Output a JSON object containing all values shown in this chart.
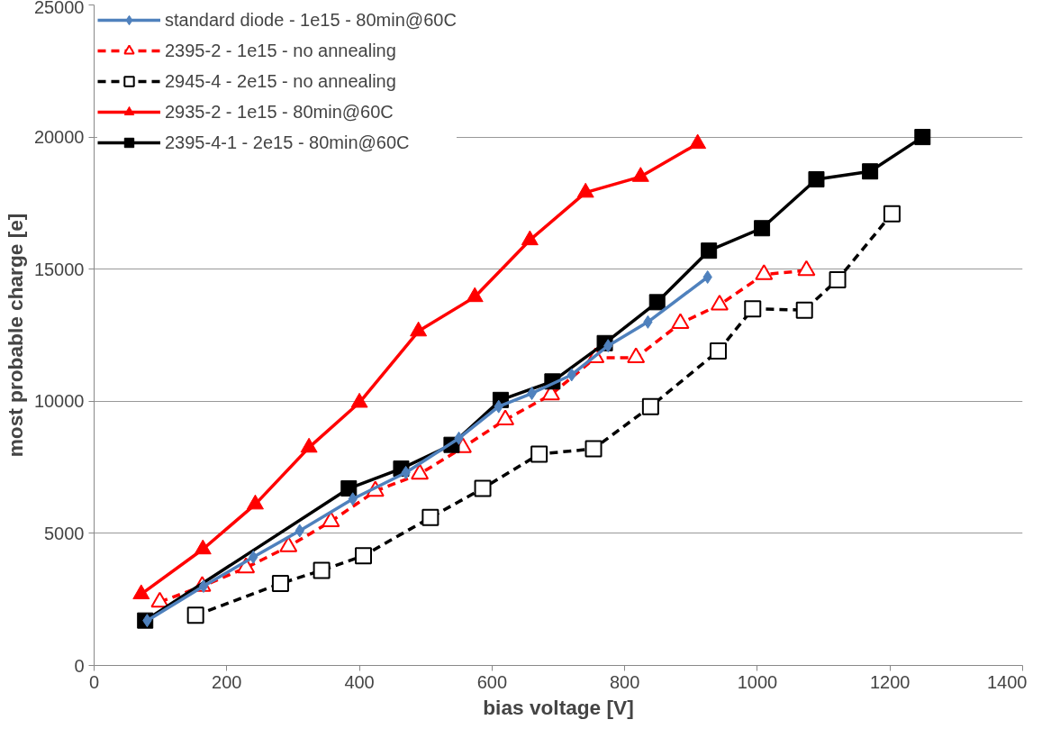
{
  "chart_data": {
    "type": "line",
    "xlabel": "bias voltage [V]",
    "ylabel": "most probable charge [e]",
    "xlim": [
      0,
      1400
    ],
    "xticks": [
      0,
      200,
      400,
      600,
      800,
      1000,
      1200,
      1400
    ],
    "ylim": [
      0,
      25000
    ],
    "yticks": [
      0,
      5000,
      10000,
      15000,
      20000,
      25000
    ],
    "grid": "y",
    "legend": "top left",
    "series": [
      {
        "name": "standard diode - 1e15 - 80min@60C",
        "color": "#4f81bd",
        "marker": "diamond",
        "line_style": "solid",
        "x": [
          80,
          165,
          240,
          310,
          390,
          470,
          550,
          610,
          660,
          720,
          775,
          835,
          925
        ],
        "values": [
          1700,
          3000,
          4100,
          5100,
          6300,
          7300,
          8600,
          9800,
          10300,
          11000,
          12100,
          13000,
          14700
        ]
      },
      {
        "name": "2395-2 - 1e15 - no annealing",
        "color": "#ff0000",
        "marker": "triangle",
        "line_style": "dashed",
        "x": [
          99,
          163,
          229,
          293,
          357,
          424,
          491,
          556,
          620,
          689,
          756,
          817,
          884,
          943,
          1010,
          1074
        ],
        "values": [
          2400,
          3000,
          3700,
          4500,
          5450,
          6600,
          7250,
          8250,
          9300,
          10250,
          11650,
          11650,
          12950,
          13650,
          14800,
          14950
        ]
      },
      {
        "name": "2945-4 - 2e15 - no annealing",
        "color": "#000000",
        "marker": "square",
        "line_style": "dashed",
        "x": [
          153,
          281,
          343,
          406,
          507,
          586,
          671,
          753,
          839,
          941,
          993,
          1071,
          1121,
          1203
        ],
        "values": [
          1900,
          3100,
          3600,
          4150,
          5600,
          6700,
          8000,
          8200,
          9800,
          11900,
          13500,
          13450,
          14600,
          17100
        ]
      },
      {
        "name": "2935-2 - 1e15 - 80min@60C",
        "color": "#ff0000",
        "marker": "triangle",
        "line_style": "solid",
        "x": [
          71,
          164,
          243,
          324,
          400,
          489,
          574,
          657,
          741,
          824,
          910
        ],
        "values": [
          2700,
          4400,
          6100,
          8250,
          9950,
          12650,
          13950,
          16100,
          17900,
          18500,
          19750
        ]
      },
      {
        "name": "2395-4-1 - 2e15 - 80min@60C",
        "color": "#000000",
        "marker": "square",
        "line_style": "solid",
        "x": [
          77,
          384,
          463,
          539,
          613,
          691,
          770,
          849,
          927,
          1007,
          1089,
          1170,
          1249
        ],
        "values": [
          1700,
          6700,
          7450,
          8350,
          10050,
          10750,
          12200,
          13750,
          15700,
          16550,
          18400,
          18700,
          20000
        ]
      }
    ]
  }
}
